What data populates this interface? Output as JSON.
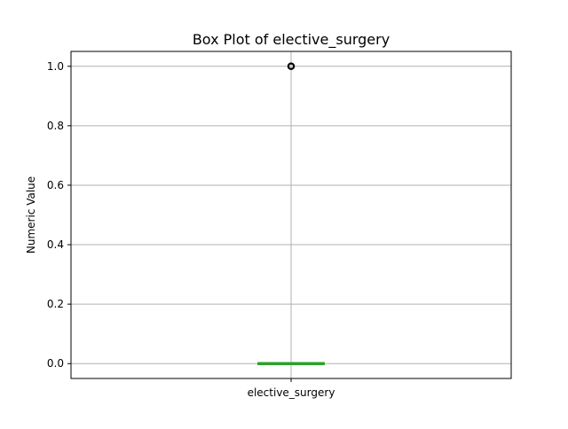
{
  "chart_data": {
    "type": "box",
    "title": "Box Plot of elective_surgery",
    "xlabel": "",
    "ylabel": "Numeric Value",
    "categories": [
      "elective_surgery"
    ],
    "ylim": [
      -0.05,
      1.05
    ],
    "yticks": [
      0.0,
      0.2,
      0.4,
      0.6,
      0.8,
      1.0
    ],
    "ytick_labels": [
      "0.0",
      "0.2",
      "0.4",
      "0.6",
      "0.8",
      "1.0"
    ],
    "grid": true,
    "series": [
      {
        "category": "elective_surgery",
        "min": 0.0,
        "q1": 0.0,
        "median": 0.0,
        "q3": 0.0,
        "max": 0.0,
        "outliers": [
          1.0
        ]
      }
    ],
    "colors": {
      "box": "#2ca02c",
      "median": "#2ca02c",
      "whisker": "#2ca02c",
      "outlier": "#000000",
      "grid": "#b0b0b0",
      "frame": "#000000"
    }
  }
}
